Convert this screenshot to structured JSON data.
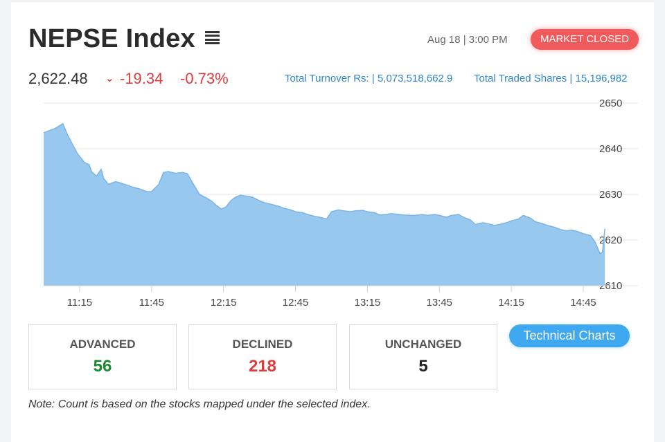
{
  "header": {
    "title": "NEPSE Index",
    "menu_icon": "hamburger-menu-icon",
    "datetime": "Aug 18 | 3:00 PM",
    "market_status": "MARKET CLOSED"
  },
  "summary": {
    "index_value": "2,622.48",
    "change_arrow": "⌄",
    "change_points": "-19.34",
    "change_percent": "-0.73%",
    "turnover": "Total Turnover Rs: | 5,073,518,662.9",
    "traded_shares": "Total Traded Shares | 15,196,982"
  },
  "colors": {
    "negative": "#e03a3a",
    "positive": "#1a8a2e",
    "area_fill": "#98c8ee",
    "area_line": "#7ab4e6",
    "accent": "#3ea8f0",
    "badge": "#f05a5a"
  },
  "chart_data": {
    "type": "area",
    "title": "",
    "xlabel": "",
    "ylabel": "",
    "ylim": [
      2610,
      2650
    ],
    "yticks": [
      2610,
      2620,
      2630,
      2640,
      2650
    ],
    "xticks": [
      "11:15",
      "11:45",
      "12:15",
      "12:45",
      "13:15",
      "13:45",
      "14:15",
      "14:45"
    ],
    "grid": "horizontal",
    "y_axis_position": "right",
    "series": [
      {
        "x": [
          "11:00",
          "11:05",
          "11:08",
          "11:10",
          "11:12",
          "11:14",
          "11:17",
          "11:19",
          "11:20",
          "11:22",
          "11:24",
          "11:25",
          "11:27",
          "11:30",
          "11:32",
          "11:35",
          "11:37",
          "11:40",
          "11:43",
          "11:45",
          "11:48",
          "11:50",
          "11:52",
          "11:55",
          "11:58",
          "12:00",
          "12:02",
          "12:05",
          "12:08",
          "12:10",
          "12:12",
          "12:14",
          "12:16",
          "12:18",
          "12:20",
          "12:22",
          "12:25",
          "12:27",
          "12:30",
          "12:32",
          "12:35",
          "12:38",
          "12:40",
          "12:43",
          "12:45",
          "12:48",
          "12:50",
          "12:53",
          "12:55",
          "12:58",
          "13:00",
          "13:03",
          "13:05",
          "13:08",
          "13:10",
          "13:13",
          "13:15",
          "13:18",
          "13:20",
          "13:23",
          "13:25",
          "13:28",
          "13:30",
          "13:33",
          "13:35",
          "13:38",
          "13:40",
          "13:43",
          "13:45",
          "13:48",
          "13:50",
          "13:53",
          "13:55",
          "13:58",
          "14:00",
          "14:03",
          "14:05",
          "14:08",
          "14:10",
          "14:13",
          "14:15",
          "14:18",
          "14:20",
          "14:23",
          "14:25",
          "14:28",
          "14:30",
          "14:33",
          "14:35",
          "14:38",
          "14:40",
          "14:43",
          "14:45",
          "14:48",
          "14:50",
          "14:52",
          "14:53",
          "14:54"
        ],
        "values": [
          2643.5,
          2644.5,
          2645.5,
          2643,
          2641,
          2639,
          2637,
          2636.5,
          2635,
          2634,
          2635.5,
          2633.5,
          2632.2,
          2632.8,
          2632.5,
          2632,
          2631.6,
          2631.2,
          2630.6,
          2630.6,
          2632.2,
          2634.8,
          2635,
          2634.6,
          2634.8,
          2634.5,
          2632.6,
          2630,
          2629.2,
          2628.5,
          2627.6,
          2626.8,
          2627.2,
          2628.6,
          2629.4,
          2629.8,
          2629.6,
          2629.4,
          2628.6,
          2628.2,
          2627.8,
          2627.4,
          2627,
          2626.6,
          2626.2,
          2626,
          2625.6,
          2625.2,
          2625,
          2624.6,
          2626.2,
          2626.6,
          2626.4,
          2626.2,
          2626.4,
          2626.5,
          2626.2,
          2626,
          2625.5,
          2625.6,
          2625.8,
          2625.6,
          2625.5,
          2625.4,
          2625.4,
          2625.6,
          2625.4,
          2625.6,
          2625.4,
          2625,
          2625.4,
          2625.6,
          2625,
          2624.4,
          2623.4,
          2623.8,
          2623.6,
          2623.2,
          2623.4,
          2623.8,
          2624.2,
          2624.6,
          2625.4,
          2624.8,
          2624,
          2623.6,
          2623.2,
          2622.8,
          2622.4,
          2622,
          2622.2,
          2621.8,
          2621.4,
          2621,
          2619.5,
          2617,
          2617.4,
          2622.48
        ]
      }
    ]
  },
  "stats": {
    "advanced_label": "ADVANCED",
    "advanced_count": "56",
    "declined_label": "DECLINED",
    "declined_count": "218",
    "unchanged_label": "UNCHANGED",
    "unchanged_count": "5"
  },
  "technical_charts_label": "Technical Charts",
  "note": "Note: Count is based on the stocks mapped under the selected index."
}
